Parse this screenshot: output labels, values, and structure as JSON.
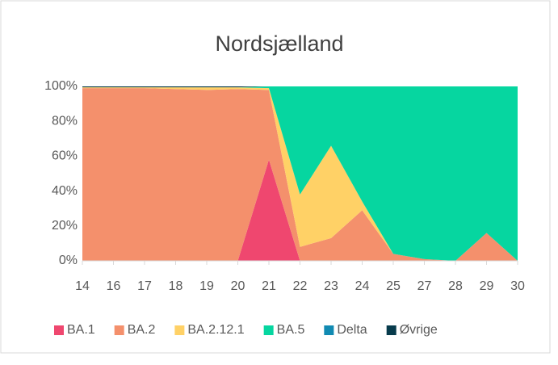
{
  "chart_data": {
    "type": "area",
    "stacked": true,
    "title": "Nordsjælland",
    "categories": [
      "14",
      "16",
      "17",
      "18",
      "19",
      "20",
      "21",
      "22",
      "23",
      "24",
      "25",
      "27",
      "28",
      "29",
      "30"
    ],
    "series": [
      {
        "name": "BA.1",
        "color": "#ef476f",
        "values": [
          0,
          0,
          0,
          0,
          0,
          0,
          58,
          0,
          0,
          0,
          0,
          0,
          0,
          0,
          0
        ]
      },
      {
        "name": "BA.2",
        "color": "#f4906c",
        "values": [
          99,
          99,
          99,
          98.5,
          98,
          98.5,
          40,
          8,
          13,
          29,
          4,
          1,
          0,
          16,
          0
        ]
      },
      {
        "name": "BA.2.12.1",
        "color": "#ffd166",
        "values": [
          0.5,
          0.5,
          0.5,
          1,
          1.5,
          1,
          1,
          30,
          53,
          5,
          0,
          0,
          0,
          0,
          0
        ]
      },
      {
        "name": "BA.5",
        "color": "#06d6a0",
        "values": [
          0,
          0,
          0,
          0,
          0,
          0,
          1,
          62,
          34,
          66,
          96,
          99,
          100,
          84,
          100
        ]
      },
      {
        "name": "Delta",
        "color": "#118ab2",
        "values": [
          0,
          0,
          0,
          0,
          0,
          0,
          0,
          0,
          0,
          0,
          0,
          0,
          0,
          0,
          0
        ]
      },
      {
        "name": "Øvrige",
        "color": "#073b4c",
        "values": [
          0.5,
          0.5,
          0.5,
          0.5,
          0.5,
          0.5,
          0,
          0,
          0,
          0,
          0,
          0,
          0,
          0,
          0
        ]
      }
    ],
    "ylim": [
      0,
      100
    ],
    "yticks": [
      {
        "value": 0,
        "label": "0%"
      },
      {
        "value": 20,
        "label": "20%"
      },
      {
        "value": 40,
        "label": "40%"
      },
      {
        "value": 60,
        "label": "60%"
      },
      {
        "value": 80,
        "label": "80%"
      },
      {
        "value": 100,
        "label": "100%"
      }
    ],
    "legend": "bottom"
  }
}
